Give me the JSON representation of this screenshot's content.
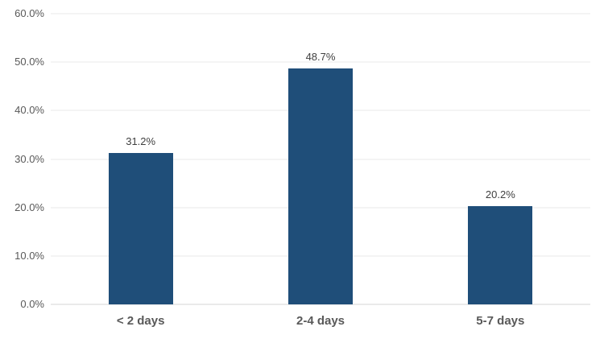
{
  "chart_data": {
    "type": "bar",
    "categories": [
      "< 2 days",
      "2-4 days",
      "5-7 days"
    ],
    "values": [
      31.2,
      48.7,
      20.2
    ],
    "data_labels": [
      "31.2%",
      "48.7%",
      "20.2%"
    ],
    "y_ticks": [
      "0.0%",
      "10.0%",
      "20.0%",
      "30.0%",
      "40.0%",
      "50.0%",
      "60.0%"
    ],
    "y_tick_interval": 10,
    "ylim": [
      0,
      60
    ],
    "title": "",
    "xlabel": "",
    "ylabel": "",
    "grid": true,
    "legend": false,
    "colors": {
      "bar": "#1f4e79",
      "gridline": "#e8e8e8",
      "axis_line": "#d6d6d6",
      "tick_label": "#595959",
      "data_label": "#404040",
      "category_label": "#595959"
    }
  }
}
